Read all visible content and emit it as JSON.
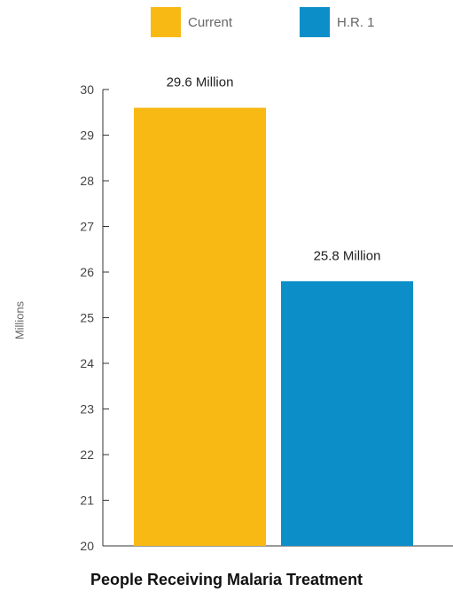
{
  "chart_data": {
    "type": "bar",
    "categories": [
      "Current",
      "H.R. 1"
    ],
    "values": [
      29.6,
      25.8
    ],
    "data_labels": [
      "29.6 Million",
      "25.8 Million"
    ],
    "colors": [
      "#f9b915",
      "#0c8ec9"
    ],
    "title": "People Receiving Malaria Treatment",
    "xlabel": "",
    "ylabel": "Millions",
    "ylim": [
      20,
      30
    ],
    "yticks": [
      "20",
      "21",
      "22",
      "23",
      "24",
      "25",
      "26",
      "27",
      "28",
      "29",
      "30"
    ],
    "legend": {
      "placement": "top-center",
      "entries": [
        {
          "label": "Current",
          "color": "#f9b915"
        },
        {
          "label": "H.R. 1",
          "color": "#0c8ec9"
        }
      ]
    },
    "grid": false
  }
}
